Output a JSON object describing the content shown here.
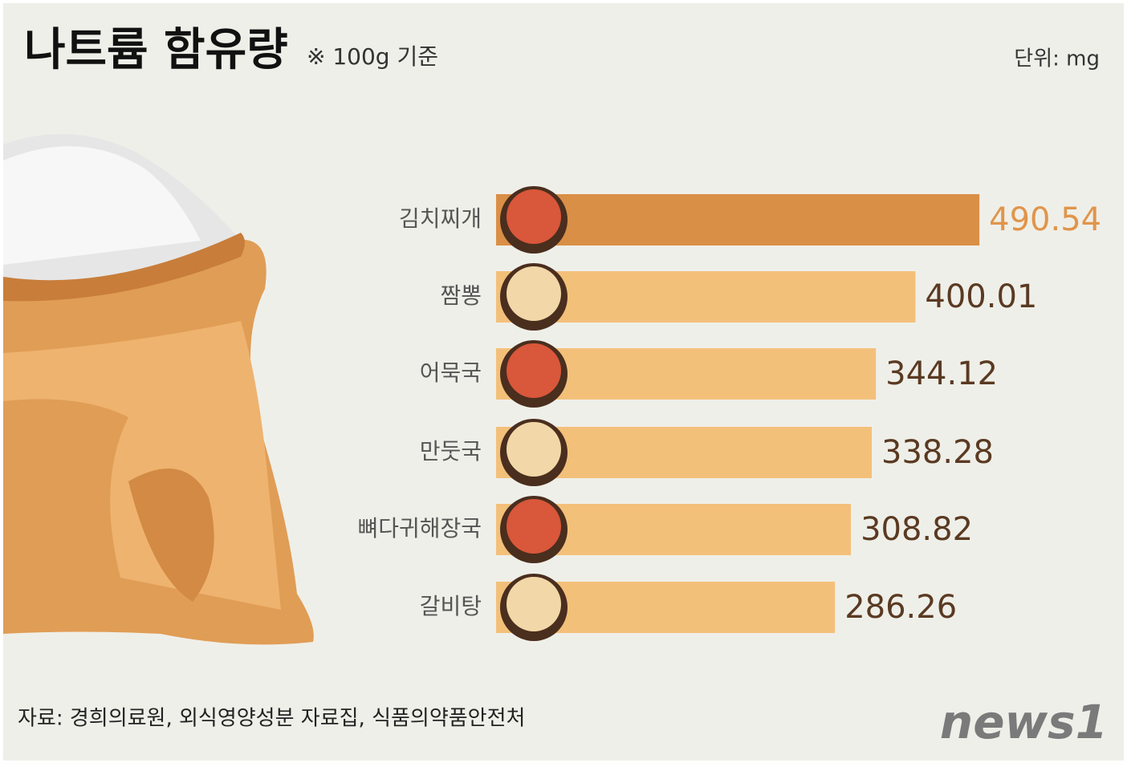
{
  "chart_data": {
    "type": "bar",
    "orientation": "horizontal",
    "title": "나트륨 함유량",
    "subtitle": "※ 100g 기준",
    "unit_label": "단위: mg",
    "source": "자료: 경희의료원, 외식영양성분 자료집, 식품의약품안전처",
    "logo": "news1",
    "categories": [
      "김치찌개",
      "짬뽕",
      "어묵국",
      "만둣국",
      "뼈다귀해장국",
      "갈비탕"
    ],
    "values": [
      490.54,
      400.01,
      344.12,
      338.28,
      308.82,
      286.26
    ],
    "colors": [
      "#d98f46",
      "#f3c07a",
      "#f3c07a",
      "#f3c07a",
      "#f3c07a",
      "#f3c07a"
    ],
    "value_label_colors": [
      "#e0954a",
      "#5a3a22",
      "#5a3a22",
      "#5a3a22",
      "#5a3a22",
      "#5a3a22"
    ]
  }
}
